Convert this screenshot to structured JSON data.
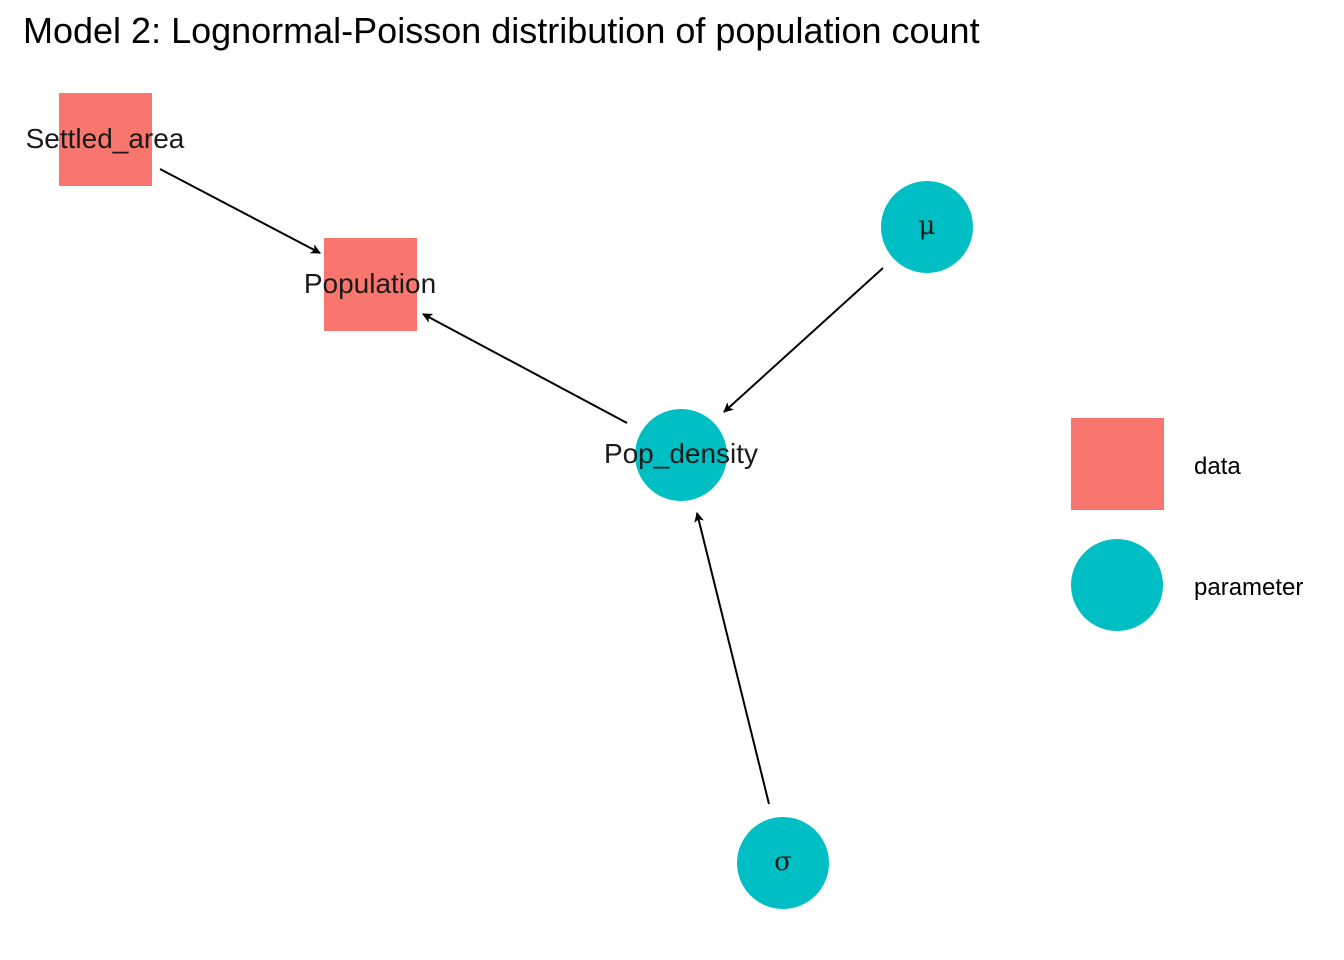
{
  "title": "Model 2: Lognormal-Poisson distribution of population count",
  "colors": {
    "data": "#F8766D",
    "parameter": "#00BFC4",
    "edge": "#000000"
  },
  "nodes": [
    {
      "id": "settled_area",
      "label": "Settled_area",
      "type": "data"
    },
    {
      "id": "population",
      "label": "Population",
      "type": "data"
    },
    {
      "id": "mu",
      "label": "μ",
      "type": "parameter"
    },
    {
      "id": "pop_density",
      "label": "Pop_density",
      "type": "parameter"
    },
    {
      "id": "sigma",
      "label": "σ",
      "type": "parameter"
    }
  ],
  "edges": [
    {
      "from": "settled_area",
      "to": "population"
    },
    {
      "from": "pop_density",
      "to": "population"
    },
    {
      "from": "mu",
      "to": "pop_density"
    },
    {
      "from": "sigma",
      "to": "pop_density"
    }
  ],
  "legend": {
    "items": [
      {
        "label": "data",
        "shape": "square",
        "type": "data"
      },
      {
        "label": "parameter",
        "shape": "circle",
        "type": "parameter"
      }
    ]
  }
}
